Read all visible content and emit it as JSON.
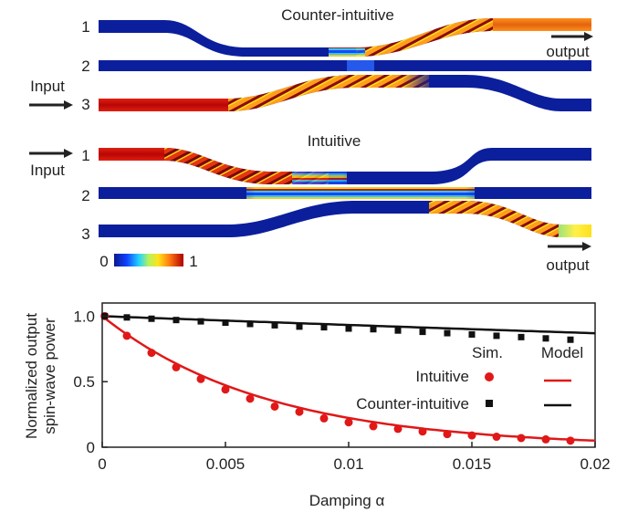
{
  "top_panel": {
    "counter_title": "Counter-intuitive",
    "intuitive_title": "Intuitive",
    "input_label": "Input",
    "output_label": "output",
    "waveguide_labels": [
      "1",
      "2",
      "3"
    ],
    "colorbar": {
      "min_label": "0",
      "max_label": "1"
    },
    "colors": {
      "low": "#0b1f9c",
      "high": "#d01010",
      "mid": "#ffe21a"
    }
  },
  "chart_data": {
    "type": "scatter",
    "xlabel": "Damping α",
    "ylabel_lines": [
      "Normalized output",
      "spin-wave power"
    ],
    "xlim": [
      0,
      0.02
    ],
    "ylim": [
      0,
      1.1
    ],
    "xticks": [
      "0",
      "0.005",
      "0.01",
      "0.015",
      "0.02"
    ],
    "xtick_values": [
      0,
      0.005,
      0.01,
      0.015,
      0.02
    ],
    "yticks": [
      "0",
      "0.5",
      "1.0"
    ],
    "ytick_values": [
      0,
      0.5,
      1.0
    ],
    "grid": false,
    "legend": {
      "sim_header": "Sim.",
      "model_header": "Model",
      "position": "right"
    },
    "series": [
      {
        "name": "Intuitive",
        "color": "#e01818",
        "marker": "circle",
        "sim": {
          "x": [
            0.0001,
            0.001,
            0.002,
            0.003,
            0.004,
            0.005,
            0.006,
            0.007,
            0.008,
            0.009,
            0.01,
            0.011,
            0.012,
            0.013,
            0.014,
            0.015,
            0.016,
            0.017,
            0.018,
            0.019
          ],
          "y": [
            1.0,
            0.85,
            0.72,
            0.61,
            0.52,
            0.44,
            0.37,
            0.31,
            0.27,
            0.22,
            0.19,
            0.16,
            0.14,
            0.12,
            0.1,
            0.09,
            0.08,
            0.07,
            0.06,
            0.05
          ]
        },
        "model_decay_rate": 150
      },
      {
        "name": "Counter-intuitive",
        "color": "#111111",
        "marker": "square",
        "sim": {
          "x": [
            0.0001,
            0.001,
            0.002,
            0.003,
            0.004,
            0.005,
            0.006,
            0.007,
            0.008,
            0.009,
            0.01,
            0.011,
            0.012,
            0.013,
            0.014,
            0.015,
            0.016,
            0.017,
            0.018,
            0.019
          ],
          "y": [
            1.0,
            0.99,
            0.98,
            0.97,
            0.96,
            0.95,
            0.94,
            0.93,
            0.92,
            0.915,
            0.905,
            0.9,
            0.89,
            0.88,
            0.87,
            0.86,
            0.85,
            0.84,
            0.83,
            0.82
          ]
        },
        "model_decay_rate": 7
      }
    ]
  }
}
